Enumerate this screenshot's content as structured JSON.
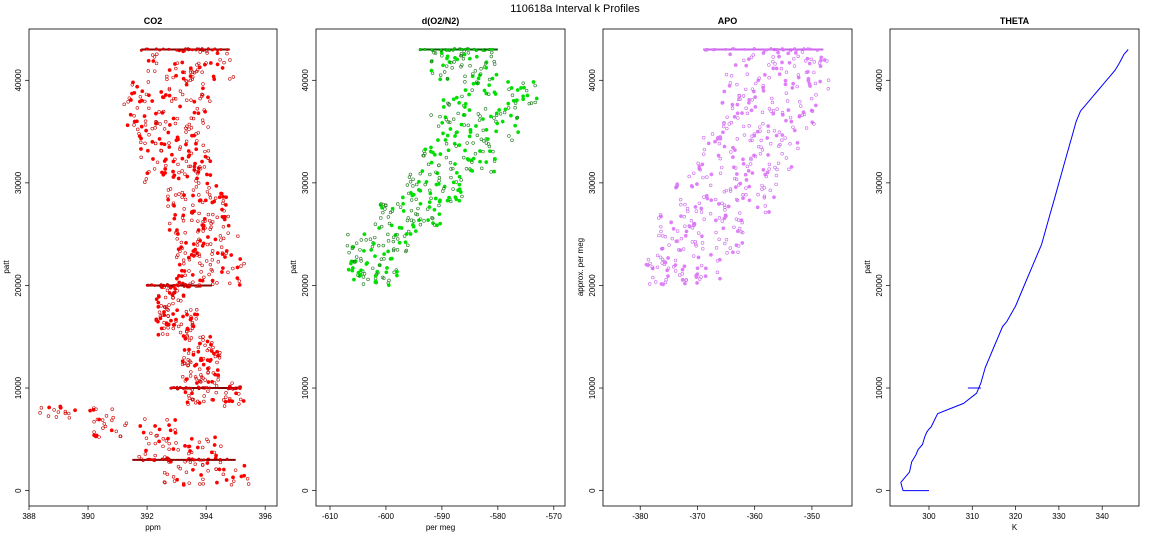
{
  "figure_title": "110618a   Interval k Profiles",
  "chart_data": [
    {
      "type": "scatter",
      "title": "CO2",
      "xlabel": "ppm",
      "ylabel": "patt",
      "xlim": [
        388,
        396.4
      ],
      "ylim": [
        -1500,
        45000
      ],
      "xticks": [
        388,
        390,
        392,
        394,
        396
      ],
      "yticks": [
        0,
        10000,
        20000,
        30000,
        40000
      ],
      "colors": {
        "points": "#cc0000",
        "dense": "#ff0000",
        "flight_level": "#8b0000"
      },
      "flight_levels": [
        {
          "y": 43000,
          "x_range": [
            391.8,
            394.8
          ]
        },
        {
          "y": 20000,
          "x_range": [
            392,
            394.2
          ]
        },
        {
          "y": 10000,
          "x_range": [
            392.8,
            395.2
          ]
        },
        {
          "y": 3000,
          "x_range": [
            391.5,
            395
          ]
        }
      ],
      "bands": [
        {
          "y": [
            500,
            2800
          ],
          "x": [
            392.5,
            395.5
          ]
        },
        {
          "y": [
            2800,
            5200
          ],
          "x": [
            391.5,
            394.5
          ]
        },
        {
          "y": [
            5200,
            7000
          ],
          "x": [
            390.2,
            393
          ]
        },
        {
          "y": [
            7000,
            8200
          ],
          "x": [
            388.2,
            391
          ]
        },
        {
          "y": [
            8200,
            10500
          ],
          "x": [
            393.2,
            395.3
          ]
        },
        {
          "y": [
            10500,
            15000
          ],
          "x": [
            393.2,
            394.5
          ]
        },
        {
          "y": [
            15000,
            20000
          ],
          "x": [
            392.3,
            393.7
          ]
        },
        {
          "y": [
            20000,
            25000
          ],
          "x": [
            393,
            395.3
          ]
        },
        {
          "y": [
            25000,
            30000
          ],
          "x": [
            392.7,
            394.8
          ]
        },
        {
          "y": [
            30000,
            35000
          ],
          "x": [
            391.7,
            394.2
          ]
        },
        {
          "y": [
            35000,
            40000
          ],
          "x": [
            391.2,
            394.2
          ]
        },
        {
          "y": [
            40000,
            43000
          ],
          "x": [
            392,
            395
          ]
        }
      ]
    },
    {
      "type": "scatter",
      "title": "d(O2/N2)",
      "xlabel": "per meg",
      "ylabel": "patt",
      "xlim": [
        -612.5,
        -568
      ],
      "ylim": [
        -1500,
        45000
      ],
      "xticks": [
        -610,
        -600,
        -590,
        -580,
        -570
      ],
      "yticks": [
        0,
        10000,
        20000,
        30000,
        40000
      ],
      "colors": {
        "points": "#1e7a1e",
        "dense": "#00e000",
        "flight_level": "#006400"
      },
      "flight_levels": [
        {
          "y": 43000,
          "x_range": [
            -594,
            -580
          ]
        }
      ],
      "bands": [
        {
          "y": [
            20000,
            22500
          ],
          "x": [
            -607,
            -598
          ]
        },
        {
          "y": [
            22500,
            25000
          ],
          "x": [
            -607,
            -596
          ]
        },
        {
          "y": [
            25000,
            28000
          ],
          "x": [
            -602,
            -590
          ]
        },
        {
          "y": [
            28000,
            31000
          ],
          "x": [
            -598,
            -586
          ]
        },
        {
          "y": [
            31000,
            34000
          ],
          "x": [
            -594,
            -580
          ]
        },
        {
          "y": [
            34000,
            37000
          ],
          "x": [
            -592,
            -576
          ]
        },
        {
          "y": [
            37000,
            40000
          ],
          "x": [
            -590,
            -573
          ]
        },
        {
          "y": [
            40000,
            43000
          ],
          "x": [
            -592,
            -580
          ]
        }
      ]
    },
    {
      "type": "scatter",
      "title": "APO",
      "xlabel": "",
      "ylabel": "approx. per meg",
      "xlim": [
        -386.5,
        -343
      ],
      "ylim": [
        -1500,
        45000
      ],
      "xticks": [
        -380,
        -370,
        -360,
        -350
      ],
      "yticks": [
        0,
        10000,
        20000,
        30000,
        40000
      ],
      "colors": {
        "points": "#cc66ee",
        "dense": "#e080f8",
        "flight_level": "#cc66ee"
      },
      "flight_levels": [
        {
          "y": 43000,
          "x_range": [
            -369,
            -348
          ]
        }
      ],
      "bands": [
        {
          "y": [
            20000,
            23000
          ],
          "x": [
            -380,
            -366
          ]
        },
        {
          "y": [
            23000,
            27000
          ],
          "x": [
            -377,
            -362
          ]
        },
        {
          "y": [
            27000,
            31000
          ],
          "x": [
            -374,
            -356
          ]
        },
        {
          "y": [
            31000,
            35000
          ],
          "x": [
            -370,
            -352
          ]
        },
        {
          "y": [
            35000,
            39000
          ],
          "x": [
            -366,
            -349
          ]
        },
        {
          "y": [
            39000,
            43000
          ],
          "x": [
            -365,
            -347
          ]
        }
      ]
    },
    {
      "type": "line",
      "title": "THETA",
      "xlabel": "K",
      "ylabel": "patt",
      "xlim": [
        291,
        348.5
      ],
      "ylim": [
        -1500,
        45000
      ],
      "xticks": [
        300,
        310,
        320,
        330,
        340
      ],
      "yticks": [
        0,
        10000,
        20000,
        30000,
        40000
      ],
      "colors": {
        "line": "#0000ff"
      },
      "segments": [
        {
          "x": [
            294,
            300
          ],
          "y": [
            0,
            0
          ]
        },
        {
          "x": [
            294,
            293.5,
            295.5,
            296,
            297,
            297.5,
            298.5,
            299,
            299.5,
            300,
            300.5,
            302,
            305,
            308,
            311,
            312,
            313,
            314,
            315,
            316,
            317,
            318,
            320,
            322,
            324,
            326,
            327,
            328,
            329,
            330,
            331,
            332,
            333,
            334,
            335,
            336,
            337,
            338,
            339,
            340,
            341,
            342,
            343,
            344,
            345,
            346
          ],
          "y": [
            0,
            800,
            1800,
            2800,
            3500,
            4000,
            4500,
            5200,
            5700,
            6000,
            6200,
            7500,
            8000,
            8500,
            9500,
            10500,
            12000,
            13000,
            14000,
            15000,
            16000,
            16500,
            18000,
            20000,
            22000,
            24000,
            25500,
            27000,
            28500,
            30000,
            31500,
            33000,
            34500,
            36000,
            37000,
            37500,
            38000,
            38500,
            39000,
            39500,
            40000,
            40500,
            41000,
            41700,
            42500,
            43000
          ]
        },
        {
          "x": [
            309,
            312
          ],
          "y": [
            10000,
            10000
          ]
        }
      ]
    }
  ]
}
